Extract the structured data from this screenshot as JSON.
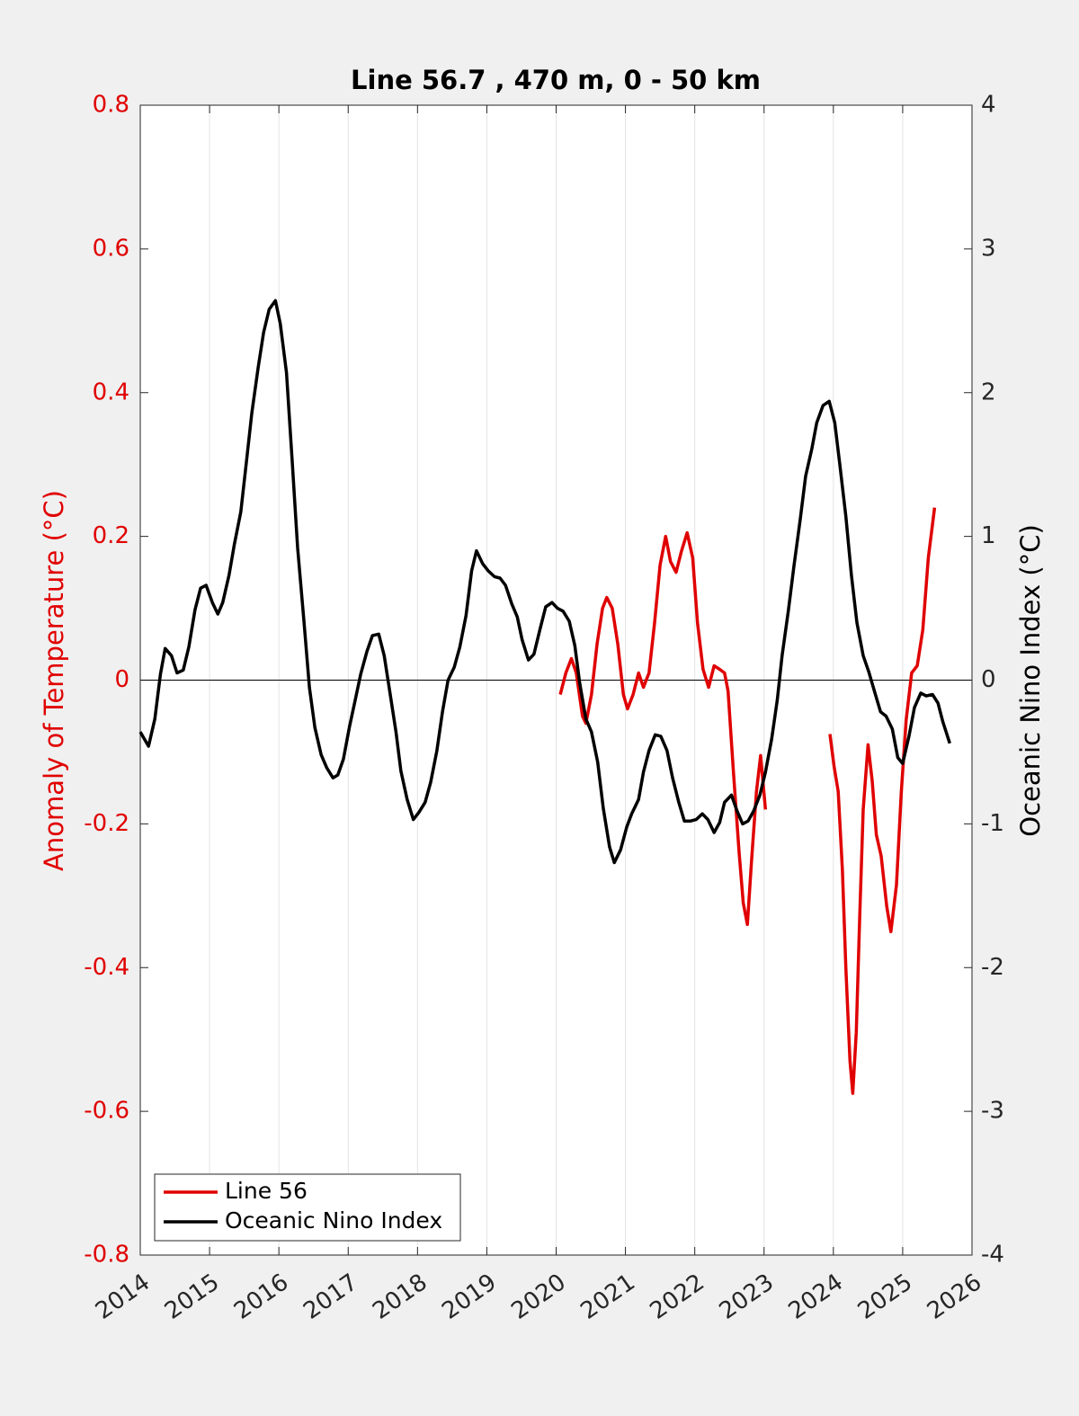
{
  "chart_data": {
    "type": "line",
    "title": "Line 56.7 , 470 m, 0 - 50 km",
    "ylabel": "Anomaly of Temperature (°C)",
    "y2label": "Oceanic Nino Index (°C)",
    "xlim": [
      2014,
      2026
    ],
    "xticks": [
      2014,
      2015,
      2016,
      2017,
      2018,
      2019,
      2020,
      2021,
      2022,
      2023,
      2024,
      2025,
      2026
    ],
    "ylim": [
      -0.8,
      0.8
    ],
    "yticks": [
      -0.8,
      -0.6,
      -0.4,
      -0.2,
      0,
      0.2,
      0.4,
      0.6,
      0.8
    ],
    "y2lim": [
      -4,
      4
    ],
    "y2ticks": [
      -4,
      -3,
      -2,
      -1,
      0,
      1,
      2,
      3,
      4
    ],
    "ylabel_color": "#e00000",
    "grid": true,
    "legend": "lower left",
    "series": [
      {
        "name": "Line 56",
        "color": "#e00000",
        "axis": "y",
        "x": [
          2020.06,
          2020.14,
          2020.22,
          2020.29,
          2020.38,
          2020.43,
          2020.51,
          2020.59,
          2020.67,
          2020.73,
          2020.81,
          2020.89,
          2020.97,
          2021.03,
          2021.11,
          2021.19,
          2021.26,
          2021.34,
          2021.42,
          2021.5,
          2021.58,
          2021.65,
          2021.73,
          2021.81,
          2021.89,
          2021.97,
          2022.04,
          2022.12,
          2022.2,
          2022.28,
          2022.36,
          2022.43,
          2022.48,
          2022.56,
          2022.64,
          2022.7,
          2022.76,
          2022.82,
          2022.89,
          2022.95,
          2023.02,
          2023.5,
          2023.95,
          2024.01,
          2024.07,
          2024.13,
          2024.18,
          2024.24,
          2024.28,
          2024.33,
          2024.38,
          2024.43,
          2024.5,
          2024.56,
          2024.62,
          2024.69,
          2024.77,
          2024.83,
          2024.91,
          2024.98,
          2025.05,
          2025.13,
          2025.21,
          2025.29,
          2025.37,
          2025.46
        ],
        "values": [
          -0.02,
          0.01,
          0.03,
          0.01,
          -0.05,
          -0.06,
          -0.02,
          0.05,
          0.1,
          0.115,
          0.1,
          0.05,
          -0.02,
          -0.04,
          -0.02,
          0.01,
          -0.01,
          0.01,
          0.08,
          0.16,
          0.2,
          0.165,
          0.15,
          0.18,
          0.205,
          0.17,
          0.08,
          0.015,
          -0.01,
          0.02,
          0.015,
          0.01,
          -0.015,
          -0.13,
          -0.24,
          -0.31,
          -0.34,
          -0.25,
          -0.155,
          -0.105,
          -0.18,
          null,
          -0.075,
          -0.12,
          -0.155,
          -0.265,
          -0.4,
          -0.53,
          -0.575,
          -0.49,
          -0.33,
          -0.18,
          -0.09,
          -0.14,
          -0.215,
          -0.245,
          -0.315,
          -0.35,
          -0.285,
          -0.155,
          -0.055,
          0.01,
          0.02,
          0.07,
          0.17,
          0.24
        ]
      },
      {
        "name": "Oceanic Nino Index",
        "color": "#000000",
        "axis": "y2",
        "x": [
          2014.0,
          2014.12,
          2014.21,
          2014.29,
          2014.36,
          2014.45,
          2014.53,
          2014.62,
          2014.7,
          2014.79,
          2014.87,
          2014.95,
          2015.04,
          2015.12,
          2015.19,
          2015.28,
          2015.36,
          2015.45,
          2015.53,
          2015.61,
          2015.7,
          2015.78,
          2015.86,
          2015.95,
          2016.02,
          2016.11,
          2016.19,
          2016.27,
          2016.36,
          2016.44,
          2016.52,
          2016.61,
          2016.69,
          2016.78,
          2016.85,
          2016.93,
          2017.02,
          2017.1,
          2017.18,
          2017.27,
          2017.35,
          2017.44,
          2017.52,
          2017.6,
          2017.69,
          2017.76,
          2017.85,
          2017.94,
          2018.02,
          2018.11,
          2018.19,
          2018.28,
          2018.36,
          2018.44,
          2018.53,
          2018.61,
          2018.7,
          2018.78,
          2018.85,
          2018.94,
          2019.02,
          2019.11,
          2019.19,
          2019.27,
          2019.36,
          2019.44,
          2019.51,
          2019.6,
          2019.68,
          2019.77,
          2019.85,
          2019.94,
          2020.02,
          2020.1,
          2020.19,
          2020.27,
          2020.34,
          2020.43,
          2020.51,
          2020.6,
          2020.68,
          2020.77,
          2020.84,
          2020.93,
          2021.02,
          2021.09,
          2021.19,
          2021.26,
          2021.34,
          2021.43,
          2021.51,
          2021.6,
          2021.68,
          2021.77,
          2021.85,
          2021.94,
          2022.02,
          2022.11,
          2022.19,
          2022.28,
          2022.36,
          2022.43,
          2022.53,
          2022.61,
          2022.69,
          2022.77,
          2022.85,
          2022.94,
          2023.02,
          2023.11,
          2023.19,
          2023.26,
          2023.35,
          2023.43,
          2023.52,
          2023.6,
          2023.69,
          2023.76,
          2023.85,
          2023.94,
          2024.02,
          2024.09,
          2024.18,
          2024.26,
          2024.34,
          2024.43,
          2024.51,
          2024.6,
          2024.68,
          2024.76,
          2024.85,
          2024.93,
          2025.0,
          2025.09,
          2025.17,
          2025.26,
          2025.34,
          2025.43,
          2025.51,
          2025.58,
          2025.68
        ],
        "values": [
          -0.36,
          -0.46,
          -0.27,
          0.04,
          0.22,
          0.17,
          0.05,
          0.07,
          0.23,
          0.49,
          0.64,
          0.66,
          0.54,
          0.46,
          0.54,
          0.73,
          0.95,
          1.17,
          1.51,
          1.86,
          2.17,
          2.42,
          2.58,
          2.64,
          2.48,
          2.14,
          1.54,
          0.92,
          0.42,
          -0.05,
          -0.33,
          -0.52,
          -0.61,
          -0.68,
          -0.66,
          -0.55,
          -0.32,
          -0.14,
          0.04,
          0.2,
          0.31,
          0.32,
          0.17,
          -0.08,
          -0.36,
          -0.63,
          -0.83,
          -0.97,
          -0.92,
          -0.85,
          -0.71,
          -0.49,
          -0.22,
          0.0,
          0.09,
          0.23,
          0.45,
          0.76,
          0.9,
          0.81,
          0.76,
          0.72,
          0.71,
          0.66,
          0.53,
          0.44,
          0.28,
          0.14,
          0.18,
          0.36,
          0.51,
          0.54,
          0.5,
          0.48,
          0.41,
          0.24,
          -0.02,
          -0.27,
          -0.36,
          -0.57,
          -0.89,
          -1.16,
          -1.27,
          -1.18,
          -1.02,
          -0.93,
          -0.83,
          -0.64,
          -0.49,
          -0.38,
          -0.39,
          -0.49,
          -0.68,
          -0.85,
          -0.98,
          -0.98,
          -0.97,
          -0.93,
          -0.97,
          -1.06,
          -0.99,
          -0.85,
          -0.8,
          -0.91,
          -1.0,
          -0.98,
          -0.91,
          -0.8,
          -0.64,
          -0.41,
          -0.14,
          0.17,
          0.48,
          0.79,
          1.11,
          1.42,
          1.61,
          1.79,
          1.91,
          1.94,
          1.79,
          1.51,
          1.14,
          0.73,
          0.4,
          0.17,
          0.06,
          -0.09,
          -0.22,
          -0.25,
          -0.34,
          -0.54,
          -0.58,
          -0.39,
          -0.19,
          -0.09,
          -0.11,
          -0.1,
          -0.16,
          -0.29,
          -0.44
        ]
      }
    ]
  }
}
